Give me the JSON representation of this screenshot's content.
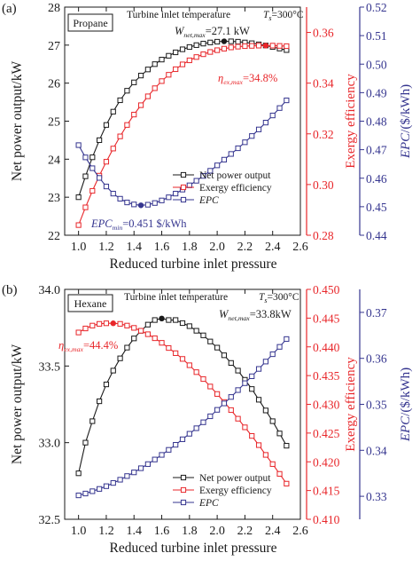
{
  "colors": {
    "black": "#1a1a1a",
    "red": "#e8262a",
    "blue": "#35358f"
  },
  "chart_data": [
    {
      "panel_label": "(a)",
      "fluid": "Propane",
      "type": "line",
      "header_text": "Turbine inlet temperature",
      "ts_text": "=300°C",
      "xlabel": "Reduced turbine inlet pressure",
      "xlim": [
        0.9,
        2.6
      ],
      "xticks": [
        1.0,
        1.2,
        1.4,
        1.6,
        1.8,
        2.0,
        2.2,
        2.4,
        2.6
      ],
      "axes": {
        "left": {
          "label": "Net power output/kW",
          "lim": [
            22,
            28
          ],
          "ticks": [
            22,
            23,
            24,
            25,
            26,
            27,
            28
          ],
          "decimals": 0,
          "color": "#1a1a1a"
        },
        "red": {
          "label": "Exergy efficiency",
          "lim": [
            0.28,
            0.37
          ],
          "ticks": [
            0.28,
            0.3,
            0.32,
            0.34,
            0.36
          ],
          "decimals": 2,
          "color": "#e8262a"
        },
        "blue": {
          "label": "EPC/($/kWh)",
          "lim": [
            0.44,
            0.52
          ],
          "ticks": [
            0.44,
            0.45,
            0.46,
            0.47,
            0.48,
            0.49,
            0.5,
            0.51,
            0.52
          ],
          "decimals": 2,
          "color": "#35358f"
        }
      },
      "x": [
        1.0,
        1.05,
        1.1,
        1.15,
        1.2,
        1.25,
        1.3,
        1.35,
        1.4,
        1.45,
        1.5,
        1.55,
        1.6,
        1.65,
        1.7,
        1.75,
        1.8,
        1.85,
        1.9,
        1.95,
        2.0,
        2.05,
        2.1,
        2.15,
        2.2,
        2.25,
        2.3,
        2.35,
        2.4,
        2.45,
        2.5
      ],
      "series": [
        {
          "name": "Net power output",
          "axis": "left",
          "color": "#1a1a1a",
          "values": [
            23.0,
            23.55,
            24.05,
            24.5,
            24.9,
            25.25,
            25.55,
            25.8,
            26.02,
            26.2,
            26.36,
            26.5,
            26.62,
            26.72,
            26.81,
            26.89,
            26.95,
            27.0,
            27.04,
            27.07,
            27.09,
            27.1,
            27.1,
            27.09,
            27.07,
            27.05,
            27.02,
            26.99,
            26.95,
            26.91,
            26.87
          ]
        },
        {
          "name": "Exergy efficiency",
          "axis": "red",
          "color": "#e8262a",
          "values": [
            0.284,
            0.291,
            0.2975,
            0.3035,
            0.309,
            0.3142,
            0.319,
            0.3235,
            0.3276,
            0.3313,
            0.3348,
            0.338,
            0.3408,
            0.3433,
            0.3455,
            0.3474,
            0.349,
            0.3503,
            0.3514,
            0.3523,
            0.353,
            0.3536,
            0.3541,
            0.3544,
            0.3546,
            0.3547,
            0.3548,
            0.3548,
            0.3548,
            0.3547,
            0.3546
          ]
        },
        {
          "name": "EPC",
          "axis": "blue",
          "color": "#35358f",
          "values": [
            0.4716,
            0.4673,
            0.4635,
            0.4601,
            0.4571,
            0.4546,
            0.4528,
            0.4515,
            0.4508,
            0.4505,
            0.4507,
            0.4513,
            0.4522,
            0.4533,
            0.4546,
            0.456,
            0.4575,
            0.4591,
            0.4608,
            0.4626,
            0.4645,
            0.4665,
            0.4685,
            0.4705,
            0.4726,
            0.4748,
            0.4771,
            0.4795,
            0.482,
            0.4846,
            0.4873
          ]
        }
      ],
      "highlights": [
        {
          "series": "Net power output",
          "index": 21
        },
        {
          "series": "Exergy efficiency",
          "index": 27
        },
        {
          "series": "EPC",
          "index": 9
        }
      ],
      "annotations": {
        "wmax": {
          "main": "W",
          "sub": "net,max",
          "rest": "=27.1 kW"
        },
        "etamax": {
          "main": "η",
          "sub": "ex,max",
          "rest": "=34.8%"
        },
        "epcmin": {
          "main": "EPC",
          "sub": "min",
          "rest": "=0.451 $/kWh"
        }
      }
    },
    {
      "panel_label": "(b)",
      "fluid": "Hexane",
      "type": "line",
      "header_text": "Turbine inlet temperature",
      "ts_text": "=300°C",
      "xlabel": "Reduced turbine inlet pressure",
      "xlim": [
        0.9,
        2.6
      ],
      "xticks": [
        1.0,
        1.2,
        1.4,
        1.6,
        1.8,
        2.0,
        2.2,
        2.4,
        2.6
      ],
      "axes": {
        "left": {
          "label": "Net power output/kW",
          "lim": [
            32.5,
            34.0
          ],
          "ticks": [
            32.5,
            33.0,
            33.5,
            34.0
          ],
          "decimals": 1,
          "color": "#1a1a1a"
        },
        "red": {
          "label": "Exergy efficiency",
          "lim": [
            0.41,
            0.45
          ],
          "ticks": [
            0.41,
            0.415,
            0.42,
            0.425,
            0.43,
            0.435,
            0.44,
            0.445,
            0.45
          ],
          "decimals": 3,
          "color": "#e8262a"
        },
        "blue": {
          "label": "EPC/($/kWh)",
          "lim": [
            0.325,
            0.375
          ],
          "ticks": [
            0.33,
            0.34,
            0.35,
            0.36,
            0.37
          ],
          "decimals": 2,
          "color": "#35358f"
        }
      },
      "x": [
        1.0,
        1.05,
        1.1,
        1.15,
        1.2,
        1.25,
        1.3,
        1.35,
        1.4,
        1.45,
        1.5,
        1.55,
        1.6,
        1.65,
        1.7,
        1.75,
        1.8,
        1.85,
        1.9,
        1.95,
        2.0,
        2.05,
        2.1,
        2.15,
        2.2,
        2.25,
        2.3,
        2.35,
        2.4,
        2.45,
        2.5
      ],
      "series": [
        {
          "name": "Net power output",
          "axis": "left",
          "color": "#1a1a1a",
          "values": [
            32.8,
            33.0,
            33.14,
            33.27,
            33.38,
            33.47,
            33.55,
            33.62,
            33.68,
            33.73,
            33.77,
            33.8,
            33.81,
            33.8,
            33.8,
            33.78,
            33.76,
            33.73,
            33.7,
            33.66,
            33.62,
            33.57,
            33.52,
            33.47,
            33.41,
            33.35,
            33.28,
            33.21,
            33.14,
            33.06,
            32.98
          ]
        },
        {
          "name": "Exergy efficiency",
          "axis": "red",
          "color": "#e8262a",
          "values": [
            0.4425,
            0.4432,
            0.4437,
            0.444,
            0.4441,
            0.4441,
            0.444,
            0.4437,
            0.4433,
            0.4428,
            0.4422,
            0.4415,
            0.4407,
            0.4398,
            0.4389,
            0.4379,
            0.4368,
            0.4356,
            0.4344,
            0.4331,
            0.4318,
            0.4304,
            0.429,
            0.4275,
            0.426,
            0.4245,
            0.4229,
            0.4212,
            0.4196,
            0.4179,
            0.4162
          ]
        },
        {
          "name": "EPC",
          "axis": "blue",
          "color": "#35358f",
          "values": [
            0.3302,
            0.3306,
            0.3311,
            0.3316,
            0.3322,
            0.3329,
            0.3336,
            0.3344,
            0.3352,
            0.3361,
            0.337,
            0.338,
            0.339,
            0.3401,
            0.3412,
            0.3424,
            0.3436,
            0.3448,
            0.3461,
            0.3474,
            0.3488,
            0.3502,
            0.3516,
            0.3531,
            0.3546,
            0.3561,
            0.3577,
            0.3593,
            0.3609,
            0.3625,
            0.3642
          ]
        }
      ],
      "highlights": [
        {
          "series": "Net power output",
          "index": 12
        },
        {
          "series": "Exergy efficiency",
          "index": 5
        }
      ],
      "annotations": {
        "wmax": {
          "main": "W",
          "sub": "net,max",
          "rest": "=33.8kW"
        },
        "etamax": {
          "main": "η",
          "sub": "ex,max",
          "rest": "=44.4%"
        }
      }
    }
  ]
}
